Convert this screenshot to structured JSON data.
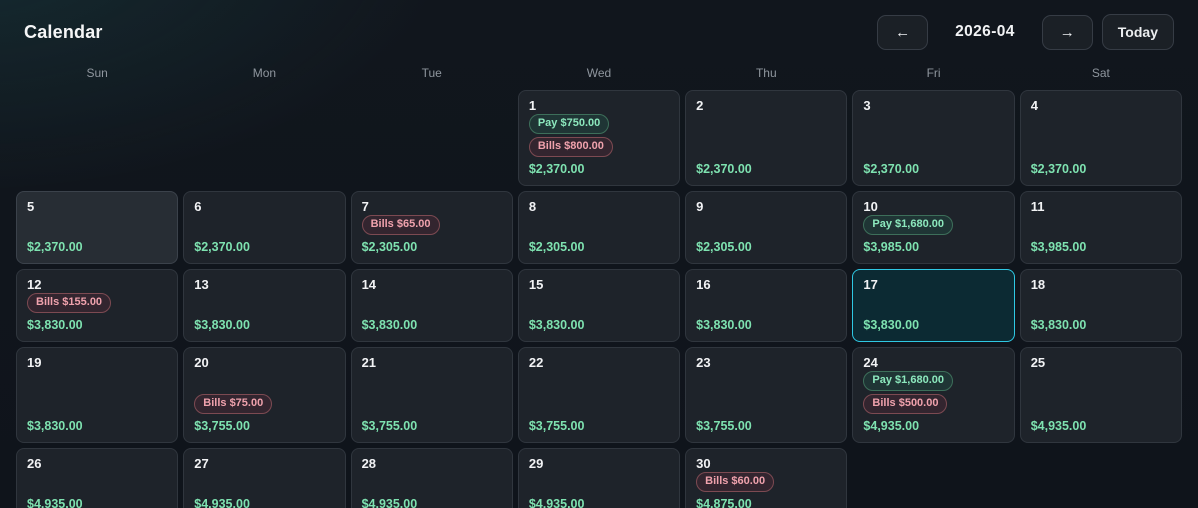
{
  "header": {
    "title": "Calendar",
    "month": "2026-04",
    "prev": "←",
    "next": "→",
    "today": "Today"
  },
  "weekdays": [
    "Sun",
    "Mon",
    "Tue",
    "Wed",
    "Thu",
    "Fri",
    "Sat"
  ],
  "colors": {
    "background": "#11161d",
    "cell_background": "#1e232a",
    "cell_border": "#30363e",
    "today_border": "#2fc8e3",
    "today_background": "#0c2a33",
    "amount_green": "#7ee2b0",
    "pay_badge_text": "#8ce8bd",
    "bills_badge_text": "#f0a2ad"
  },
  "grid": {
    "leading_empty": 3,
    "trailing_empty": 2,
    "days": [
      {
        "day": "1",
        "badges": [
          {
            "type": "pay",
            "label": "Pay $750.00"
          },
          {
            "type": "bills",
            "label": "Bills $800.00"
          }
        ],
        "amount": "$2,370.00",
        "state": "normal"
      },
      {
        "day": "2",
        "badges": [],
        "amount": "$2,370.00",
        "state": "normal"
      },
      {
        "day": "3",
        "badges": [],
        "amount": "$2,370.00",
        "state": "normal"
      },
      {
        "day": "4",
        "badges": [],
        "amount": "$2,370.00",
        "state": "normal"
      },
      {
        "day": "5",
        "badges": [],
        "amount": "$2,370.00",
        "state": "highlight"
      },
      {
        "day": "6",
        "badges": [],
        "amount": "$2,370.00",
        "state": "normal"
      },
      {
        "day": "7",
        "badges": [
          {
            "type": "bills",
            "label": "Bills $65.00"
          }
        ],
        "amount": "$2,305.00",
        "state": "normal"
      },
      {
        "day": "8",
        "badges": [],
        "amount": "$2,305.00",
        "state": "normal"
      },
      {
        "day": "9",
        "badges": [],
        "amount": "$2,305.00",
        "state": "normal"
      },
      {
        "day": "10",
        "badges": [
          {
            "type": "pay",
            "label": "Pay $1,680.00"
          }
        ],
        "amount": "$3,985.00",
        "state": "normal"
      },
      {
        "day": "11",
        "badges": [],
        "amount": "$3,985.00",
        "state": "normal"
      },
      {
        "day": "12",
        "badges": [
          {
            "type": "bills",
            "label": "Bills $155.00"
          }
        ],
        "amount": "$3,830.00",
        "state": "normal"
      },
      {
        "day": "13",
        "badges": [],
        "amount": "$3,830.00",
        "state": "normal"
      },
      {
        "day": "14",
        "badges": [],
        "amount": "$3,830.00",
        "state": "normal"
      },
      {
        "day": "15",
        "badges": [],
        "amount": "$3,830.00",
        "state": "normal"
      },
      {
        "day": "16",
        "badges": [],
        "amount": "$3,830.00",
        "state": "normal"
      },
      {
        "day": "17",
        "badges": [],
        "amount": "$3,830.00",
        "state": "today"
      },
      {
        "day": "18",
        "badges": [],
        "amount": "$3,830.00",
        "state": "normal"
      },
      {
        "day": "19",
        "badges": [],
        "amount": "$3,830.00",
        "state": "normal"
      },
      {
        "day": "20",
        "badges": [
          {
            "type": "bills",
            "label": "Bills $75.00"
          }
        ],
        "amount": "$3,755.00",
        "state": "normal"
      },
      {
        "day": "21",
        "badges": [],
        "amount": "$3,755.00",
        "state": "normal"
      },
      {
        "day": "22",
        "badges": [],
        "amount": "$3,755.00",
        "state": "normal"
      },
      {
        "day": "23",
        "badges": [],
        "amount": "$3,755.00",
        "state": "normal"
      },
      {
        "day": "24",
        "badges": [
          {
            "type": "pay",
            "label": "Pay $1,680.00"
          },
          {
            "type": "bills",
            "label": "Bills $500.00"
          }
        ],
        "amount": "$4,935.00",
        "state": "normal"
      },
      {
        "day": "25",
        "badges": [],
        "amount": "$4,935.00",
        "state": "normal"
      },
      {
        "day": "26",
        "badges": [],
        "amount": "$4,935.00",
        "state": "normal"
      },
      {
        "day": "27",
        "badges": [],
        "amount": "$4,935.00",
        "state": "normal"
      },
      {
        "day": "28",
        "badges": [],
        "amount": "$4,935.00",
        "state": "normal"
      },
      {
        "day": "29",
        "badges": [],
        "amount": "$4,935.00",
        "state": "normal"
      },
      {
        "day": "30",
        "badges": [
          {
            "type": "bills",
            "label": "Bills $60.00"
          }
        ],
        "amount": "$4,875.00",
        "state": "normal"
      }
    ]
  }
}
